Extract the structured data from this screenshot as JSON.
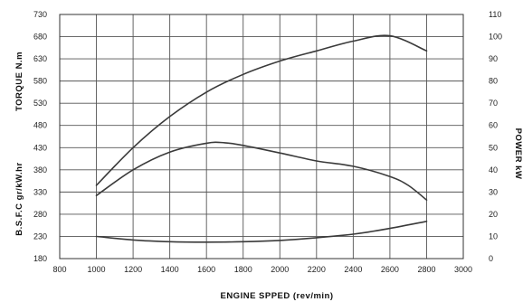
{
  "chart_data": {
    "type": "line",
    "xlabel": "ENGINE SPPED (rev/min)",
    "ylabel_left_top": "TORQUE  N.m",
    "ylabel_left_bottom": "B.S.F.C  gr/kW.hr",
    "ylabel_right": "POWER  kW",
    "xlim": [
      800,
      3000
    ],
    "ylim_left": [
      180,
      730
    ],
    "ylim_right": [
      0,
      110
    ],
    "x_ticks": [
      800,
      1000,
      1200,
      1400,
      1600,
      1800,
      2000,
      2200,
      2400,
      2600,
      2800,
      3000
    ],
    "y_left_ticks": [
      180,
      230,
      280,
      330,
      380,
      430,
      480,
      530,
      580,
      630,
      680,
      730
    ],
    "y_right_ticks": [
      0,
      10,
      20,
      30,
      40,
      50,
      60,
      70,
      80,
      90,
      100,
      110
    ],
    "grid": true,
    "series": [
      {
        "axis": "left",
        "x": [
          1000,
          1200,
          1400,
          1600,
          1800,
          2000,
          2200,
          2400,
          2600,
          2800
        ],
        "y": [
          345,
          430,
          500,
          555,
          595,
          625,
          648,
          670,
          682,
          648
        ]
      },
      {
        "axis": "left",
        "x": [
          1000,
          1200,
          1400,
          1600,
          1700,
          1800,
          2000,
          2200,
          2400,
          2600,
          2700,
          2800
        ],
        "y": [
          322,
          380,
          420,
          440,
          441,
          435,
          418,
          400,
          388,
          365,
          345,
          312
        ]
      },
      {
        "axis": "left",
        "x": [
          1000,
          1200,
          1400,
          1600,
          1800,
          2000,
          2200,
          2400,
          2600,
          2800
        ],
        "y": [
          230,
          222,
          218,
          217,
          218,
          221,
          227,
          235,
          248,
          264
        ]
      }
    ]
  }
}
